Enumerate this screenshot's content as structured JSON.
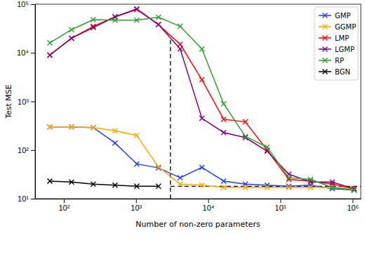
{
  "chart_data": {
    "type": "line",
    "x_label": "Number of non-zero parameters",
    "y_label": "Test MSE",
    "log": true,
    "grid": false,
    "legend": "upper right",
    "marker": "x",
    "xlim": [
      40,
      1300000
    ],
    "ylim": [
      10,
      100000
    ],
    "xticks": [
      {
        "value": 100,
        "label": "10²"
      },
      {
        "value": 1000,
        "label": "10³"
      },
      {
        "value": 10000,
        "label": "10⁴"
      },
      {
        "value": 100000,
        "label": "10⁵"
      },
      {
        "value": 1000000,
        "label": "10⁶"
      }
    ],
    "yticks": [
      {
        "value": 10,
        "label": "10¹"
      },
      {
        "value": 100,
        "label": "10²"
      },
      {
        "value": 1000,
        "label": "10³"
      },
      {
        "value": 10000,
        "label": "10⁴"
      },
      {
        "value": 100000,
        "label": "10⁵"
      }
    ],
    "x": [
      64,
      128,
      256,
      512,
      1024,
      2048,
      4096,
      8192,
      16384,
      32768,
      65536,
      131072,
      262144,
      524288,
      1048576
    ],
    "series": [
      {
        "name": "GMP",
        "color": "#1f3fff",
        "values": [
          300,
          300,
          290,
          140,
          52,
          43,
          27,
          44,
          23,
          20,
          19,
          18,
          19,
          16,
          15
        ]
      },
      {
        "name": "GGMP",
        "color": "#ffa500",
        "values": [
          300,
          300,
          290,
          250,
          200,
          45,
          20,
          19,
          17,
          17,
          17,
          17,
          17,
          17,
          16
        ]
      },
      {
        "name": "LMP",
        "color": "#ff0000",
        "values": [
          9000,
          20000,
          35000,
          55000,
          78000,
          38000,
          15000,
          2800,
          430,
          380,
          100,
          25,
          23,
          20,
          16
        ]
      },
      {
        "name": "LGMP",
        "color": "#800080",
        "values": [
          9000,
          20000,
          33000,
          55000,
          80000,
          38000,
          12000,
          450,
          230,
          180,
          95,
          32,
          22,
          22,
          16
        ]
      },
      {
        "name": "RP",
        "color": "#2ca02c",
        "values": [
          16000,
          30000,
          48000,
          47000,
          47000,
          54000,
          35000,
          12000,
          900,
          190,
          115,
          27,
          25,
          17,
          15
        ]
      },
      {
        "name": "BGN",
        "color": "#000000",
        "values": [
          23,
          22,
          20,
          19,
          18,
          18,
          null,
          null,
          null,
          null,
          null,
          null,
          null,
          null,
          null
        ]
      }
    ],
    "reference_lines": [
      {
        "x": [
          3000,
          3000
        ],
        "y": [
          10,
          20000
        ],
        "color": "#000000",
        "line_style": "dashed"
      },
      {
        "x": [
          3000,
          1300000
        ],
        "y": [
          18,
          18
        ],
        "color": "#000000",
        "line_style": "dashed"
      }
    ]
  }
}
